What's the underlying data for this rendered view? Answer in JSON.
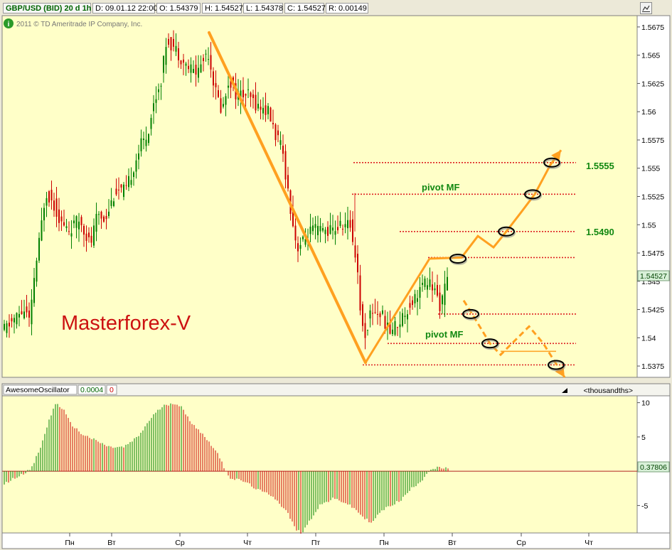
{
  "header": {
    "symbol": "GBP/USD (BID) 20 d 1h",
    "date": "D: 09.01.12 22:00",
    "open": "O: 1.54379",
    "high": "H: 1.54527",
    "low": "L: 1.54378",
    "close": "C: 1.54527",
    "range": "R: 0.00149",
    "copyright": "2011 © TD Ameritrade IP Company, Inc.",
    "info_icon": "info-icon",
    "expand_icon": "expand-icon"
  },
  "price_panel": {
    "watermark": "Masterforex-V",
    "current_price_label": "1.54527",
    "level_labels": [
      "1.5555",
      "1.5490"
    ],
    "pivot_labels": [
      "pivot MF",
      "pivot MF"
    ],
    "colors": {
      "background": "#ffffc8",
      "up": "#008000",
      "down": "#cc0000",
      "trend": "#ffa020",
      "level": "#dd2222",
      "watermark": "#cc1111",
      "label": "#118811"
    }
  },
  "oscillator": {
    "name": "AwesomeOscillator",
    "value": "0.0004",
    "zero": "0",
    "units": "<thousandths>",
    "current_label": "0.37806"
  },
  "x_axis": {
    "day_labels": [
      "Пн",
      "Вт",
      "Ср",
      "Чт",
      "Пт",
      "Пн",
      "Вт",
      "Ср",
      "Чт"
    ]
  },
  "chart_data": [
    {
      "type": "candlestick",
      "ylim": [
        1.5365,
        1.5685
      ],
      "y_ticks": [
        "1.5675",
        "1.565",
        "1.5625",
        "1.56",
        "1.5575",
        "1.555",
        "1.5525",
        "1.55",
        "1.5475",
        "1.545",
        "1.5425",
        "1.54",
        "1.5375"
      ],
      "anchors": [
        [
          0,
          1.5405
        ],
        [
          20,
          1.5418
        ],
        [
          33,
          1.5425
        ],
        [
          40,
          1.5412
        ],
        [
          45,
          1.545
        ],
        [
          52,
          1.548
        ],
        [
          62,
          1.553
        ],
        [
          72,
          1.552
        ],
        [
          85,
          1.55
        ],
        [
          95,
          1.5495
        ],
        [
          110,
          1.5505
        ],
        [
          125,
          1.5482
        ],
        [
          135,
          1.551
        ],
        [
          145,
          1.5505
        ],
        [
          160,
          1.553
        ],
        [
          175,
          1.553
        ],
        [
          185,
          1.555
        ],
        [
          195,
          1.557
        ],
        [
          205,
          1.558
        ],
        [
          215,
          1.561
        ],
        [
          225,
          1.563
        ],
        [
          232,
          1.5665
        ],
        [
          245,
          1.5655
        ],
        [
          260,
          1.564
        ],
        [
          275,
          1.5635
        ],
        [
          290,
          1.5655
        ],
        [
          300,
          1.562
        ],
        [
          310,
          1.56
        ],
        [
          320,
          1.563
        ],
        [
          330,
          1.5615
        ],
        [
          345,
          1.5615
        ],
        [
          360,
          1.5605
        ],
        [
          375,
          1.56
        ],
        [
          385,
          1.558
        ],
        [
          395,
          1.5565
        ],
        [
          405,
          1.552
        ],
        [
          415,
          1.548
        ],
        [
          425,
          1.5485
        ],
        [
          435,
          1.5495
        ],
        [
          450,
          1.5495
        ],
        [
          465,
          1.5495
        ],
        [
          480,
          1.55
        ],
        [
          490,
          1.55
        ],
        [
          500,
          1.5465
        ],
        [
          505,
          1.542
        ],
        [
          510,
          1.54
        ],
        [
          520,
          1.5425
        ],
        [
          535,
          1.542
        ],
        [
          545,
          1.5405
        ],
        [
          560,
          1.5415
        ],
        [
          575,
          1.543
        ],
        [
          590,
          1.5445
        ],
        [
          600,
          1.545
        ],
        [
          610,
          1.544
        ],
        [
          617,
          1.5428
        ],
        [
          627,
          1.5452
        ]
      ],
      "annotations": {
        "levels": [
          1.5555,
          1.5527,
          1.5494,
          1.5471,
          1.5421,
          1.5395,
          1.5376
        ],
        "trend_down": [
          [
            290,
            1.567
          ],
          [
            510,
            1.5378
          ]
        ],
        "trend_up": [
          [
            510,
            1.5378
          ],
          [
            600,
            1.547
          ]
        ],
        "projection_up": [
          [
            600,
            1.547
          ],
          [
            645,
            1.5471
          ],
          [
            668,
            1.549
          ],
          [
            690,
            1.548
          ],
          [
            708,
            1.5494
          ],
          [
            730,
            1.5512
          ],
          [
            748,
            1.5527
          ],
          [
            770,
            1.5553
          ],
          [
            785,
            1.5566
          ]
        ],
        "projection_down": [
          [
            648,
            1.5433
          ],
          [
            660,
            1.5421
          ],
          [
            685,
            1.5395
          ],
          [
            700,
            1.5385
          ],
          [
            740,
            1.541
          ],
          [
            760,
            1.5395
          ],
          [
            775,
            1.538
          ],
          [
            790,
            1.5365
          ]
        ],
        "range_line": [
          [
            700,
            1.5388
          ],
          [
            778,
            1.5388
          ]
        ],
        "resistance_vertical": [
          [
            495,
            1.5528
          ],
          [
            495,
            1.5494
          ]
        ],
        "markers": [
          [
            640,
            1.547
          ],
          [
            658,
            1.5421
          ],
          [
            685,
            1.5395
          ],
          [
            708,
            1.5494
          ],
          [
            745,
            1.5527
          ],
          [
            772,
            1.5555
          ],
          [
            778,
            1.5376
          ]
        ]
      }
    },
    {
      "type": "bar",
      "ylim": [
        -9,
        11
      ],
      "y_ticks": [
        "10",
        "5",
        "-5"
      ],
      "anchors": [
        [
          0,
          -2
        ],
        [
          25,
          -0.5
        ],
        [
          40,
          0.3
        ],
        [
          55,
          4
        ],
        [
          65,
          7.5
        ],
        [
          75,
          10
        ],
        [
          85,
          9
        ],
        [
          95,
          7
        ],
        [
          110,
          5.5
        ],
        [
          130,
          4.5
        ],
        [
          150,
          3.5
        ],
        [
          170,
          3.5
        ],
        [
          190,
          5
        ],
        [
          210,
          8
        ],
        [
          225,
          9.5
        ],
        [
          240,
          10
        ],
        [
          250,
          9.5
        ],
        [
          262,
          7.5
        ],
        [
          280,
          5.5
        ],
        [
          300,
          3
        ],
        [
          310,
          0.8
        ],
        [
          320,
          -1
        ],
        [
          340,
          -1.5
        ],
        [
          360,
          -2.8
        ],
        [
          380,
          -3.6
        ],
        [
          400,
          -6
        ],
        [
          412,
          -8.5
        ],
        [
          420,
          -9
        ],
        [
          430,
          -7.5
        ],
        [
          445,
          -5
        ],
        [
          465,
          -4
        ],
        [
          480,
          -4.5
        ],
        [
          495,
          -5.5
        ],
        [
          510,
          -7
        ],
        [
          520,
          -7.5
        ],
        [
          530,
          -6
        ],
        [
          545,
          -5
        ],
        [
          560,
          -4.2
        ],
        [
          575,
          -2.5
        ],
        [
          590,
          -1.2
        ],
        [
          600,
          0.2
        ],
        [
          612,
          0.5
        ],
        [
          627,
          0.4
        ]
      ]
    }
  ]
}
